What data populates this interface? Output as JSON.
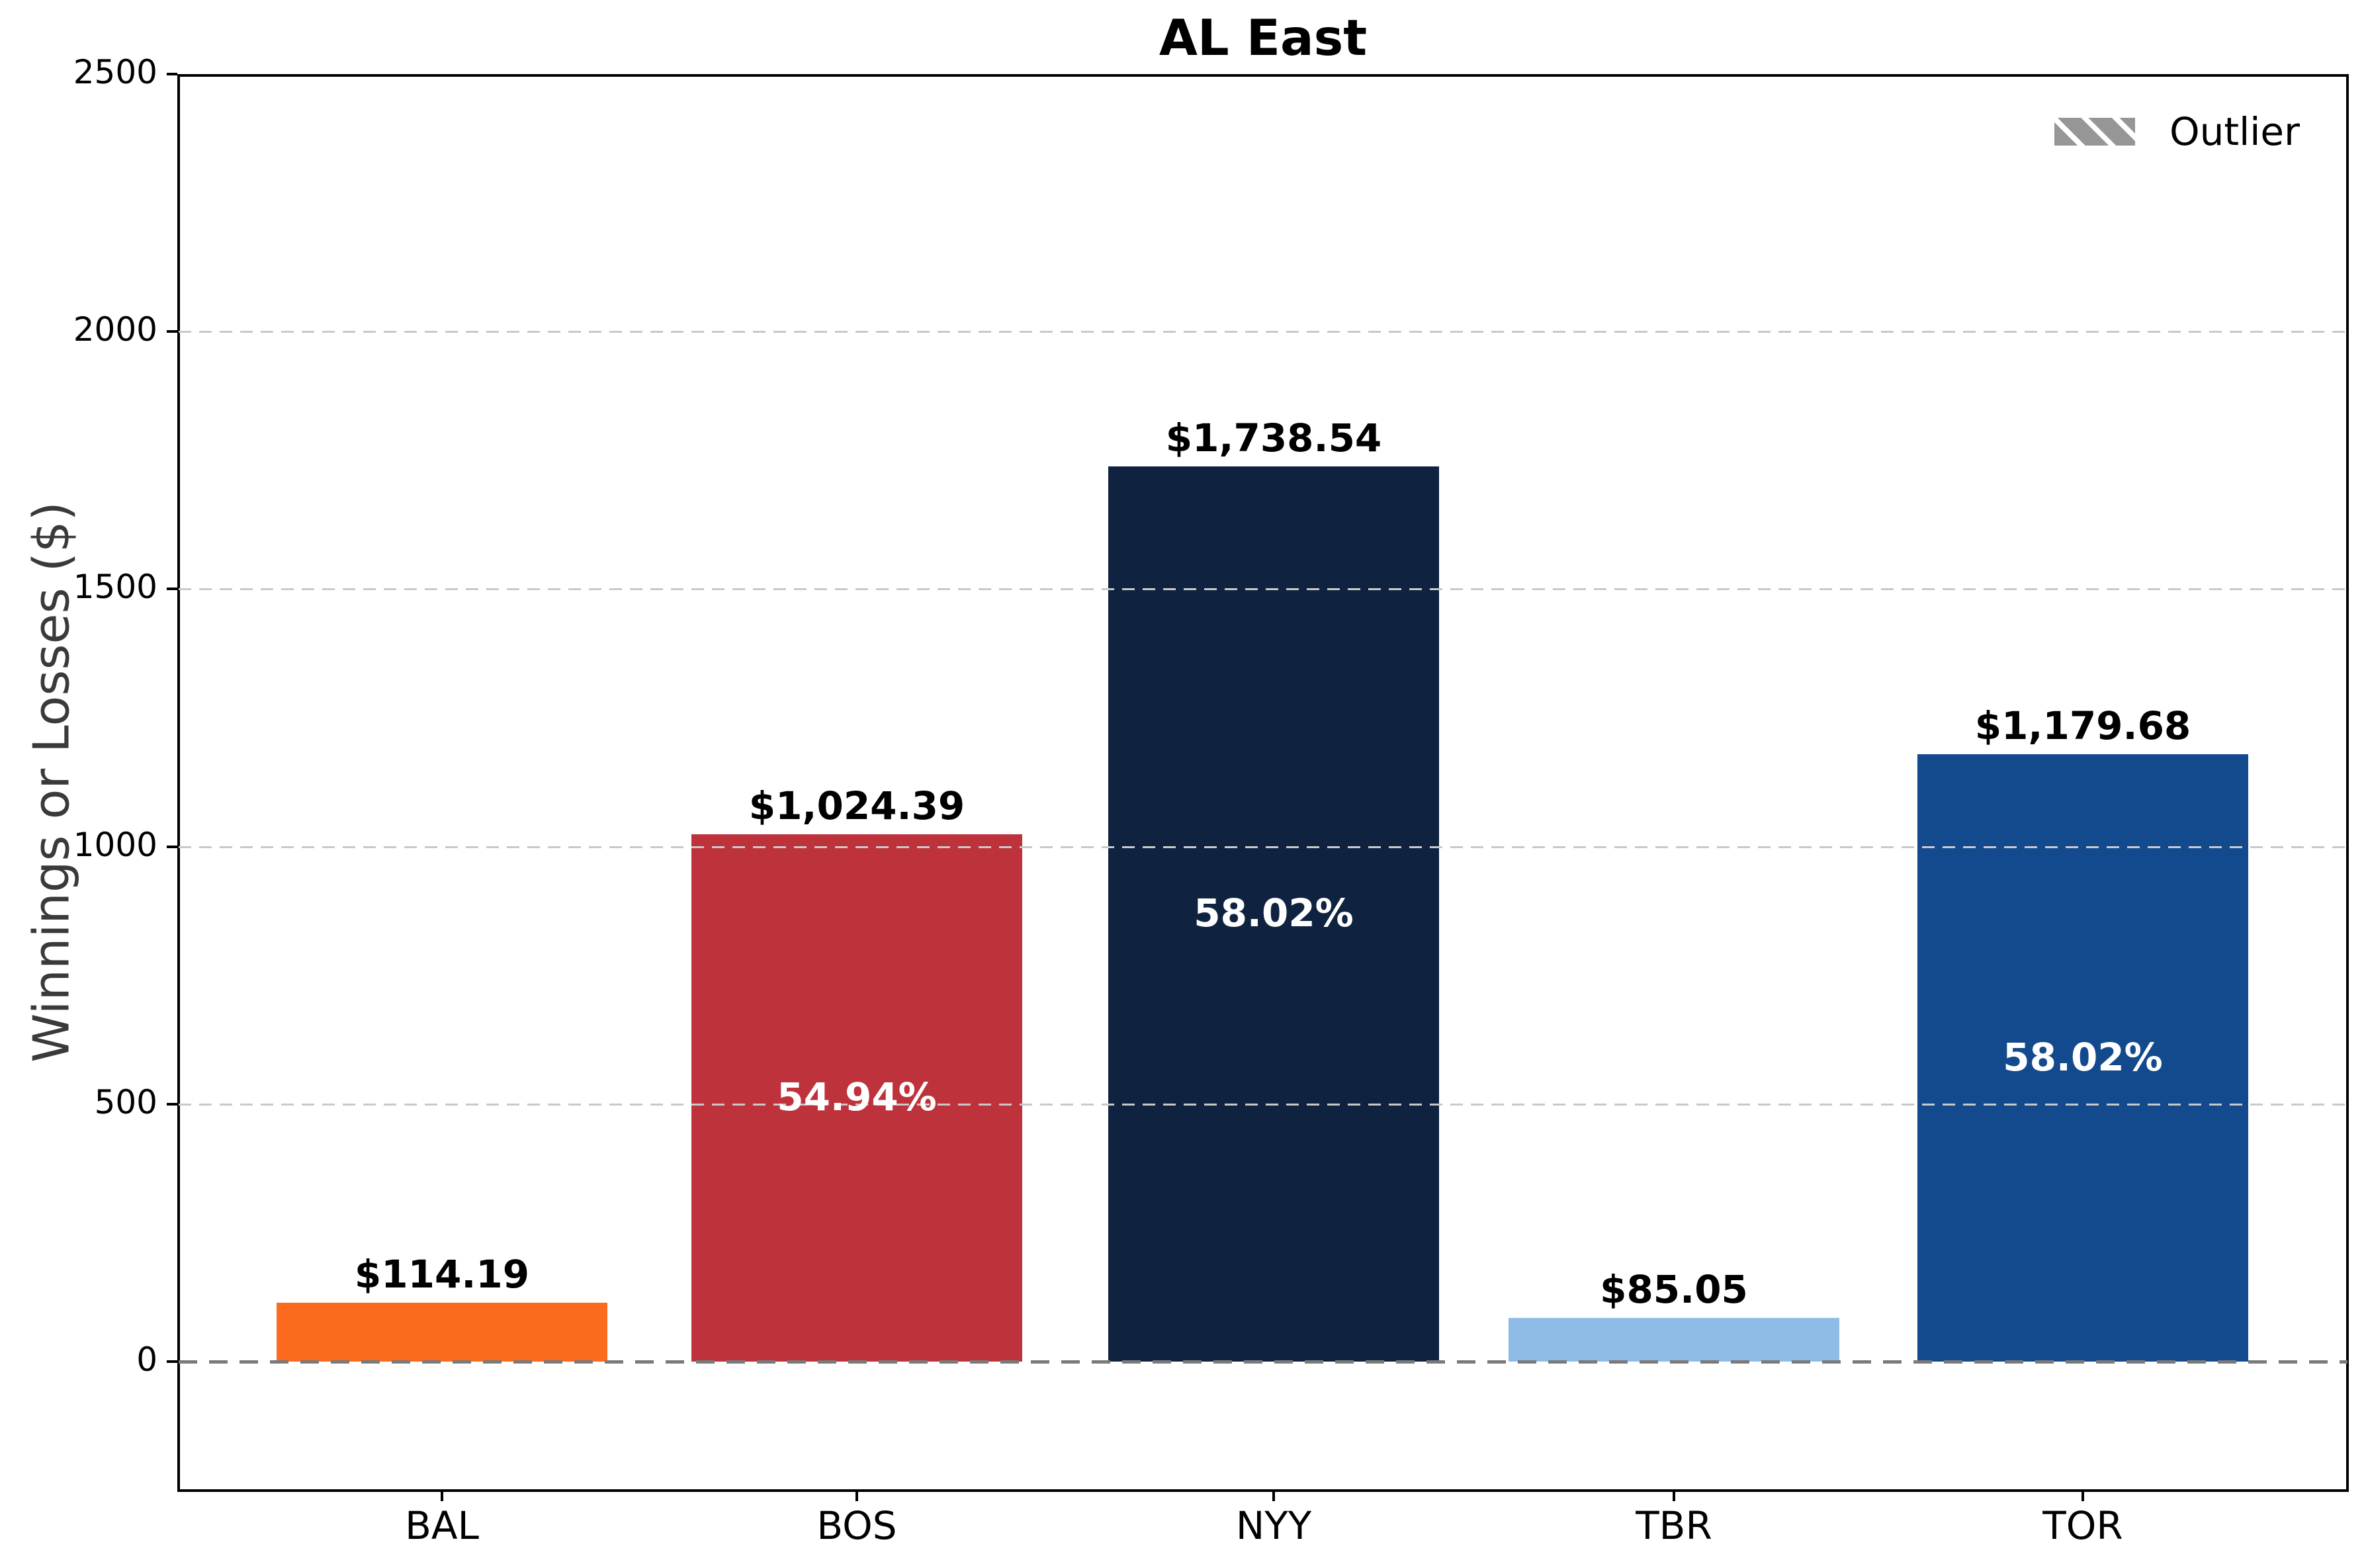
{
  "chart_data": {
    "type": "bar",
    "title": "AL East",
    "ylabel": "Winnings or Losses ($)",
    "xlabel": "",
    "categories": [
      "BAL",
      "BOS",
      "NYY",
      "TBR",
      "TOR"
    ],
    "values": [
      114.19,
      1024.39,
      1738.54,
      85.05,
      1179.68
    ],
    "bar_value_labels": [
      "$114.19",
      "$1,024.39",
      "$1,738.54",
      "$85.05",
      "$1,179.68"
    ],
    "bar_inner_labels": [
      "",
      "54.94%",
      "58.02%",
      "",
      "58.02%"
    ],
    "bar_colors": [
      "#FC6A1E",
      "#BE323C",
      "#0F2340",
      "#8FBCE6",
      "#134A8E"
    ],
    "ylim": [
      -250,
      2500
    ],
    "yticks": [
      0,
      500,
      1000,
      1500,
      2000,
      2500
    ],
    "grid": "horizontal dashed gridlines at ytick values, drawn over bars",
    "zero_line": "gray dashed line at y=0 spanning plot width",
    "legend": {
      "label": "Outlier",
      "position": "upper right",
      "swatch": "gray rectangle with white diagonal hatch"
    },
    "colors": {
      "grid": "#c9c9c9",
      "zero_line": "#7a7a7a",
      "axis_label": "#3a3a3a",
      "spine": "#000000",
      "pct_label": "#ffffff",
      "value_label": "#000000"
    }
  }
}
